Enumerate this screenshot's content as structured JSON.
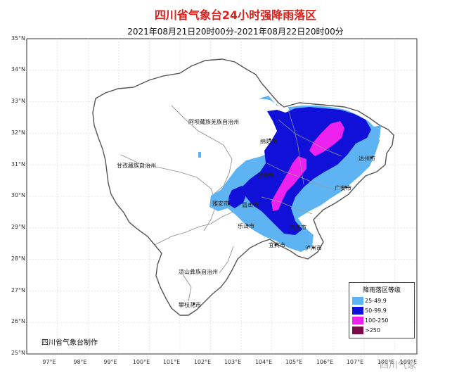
{
  "title": "四川省气象台24小时强降雨落区",
  "subtitle": "2021年08月21日20时00分-2021年08月22日20时00分",
  "latitude_labels": [
    "35°N",
    "34°N",
    "33°N",
    "32°N",
    "31°N",
    "30°N",
    "29°N",
    "28°N",
    "27°N",
    "26°N",
    "25°N"
  ],
  "longitude_labels": [
    "97°E",
    "98°E",
    "99°E",
    "100°E",
    "101°E",
    "102°E",
    "103°E",
    "104°E",
    "105°E",
    "106°E",
    "107°E",
    "108°E",
    "109°E"
  ],
  "places": [
    "阿坝藏族羌族自治州",
    "甘孜藏族自治州",
    "凉山彝族自治州",
    "攀枝花市",
    "绵阳市",
    "德阳市",
    "达州市",
    "广安市",
    "雅安市",
    "眉山市",
    "乐山市",
    "内江市",
    "宜宾市",
    "泸州市"
  ],
  "legend": {
    "title": "降雨落区等级",
    "items": [
      {
        "label": "25-49.9",
        "color": "#5eb4f2"
      },
      {
        "label": "50-99.9",
        "color": "#1010d8"
      },
      {
        "label": "100-250",
        "color": "#ee22ee"
      },
      {
        "label": ">250",
        "color": "#7a0b46"
      }
    ]
  },
  "producer": "四川省气象台制作",
  "watermark": "四川气象",
  "colors": {
    "boundary": "#555555",
    "inner_boundary": "#8a8a8a",
    "grid": "#d8d8d8",
    "title": "#e0201b"
  }
}
